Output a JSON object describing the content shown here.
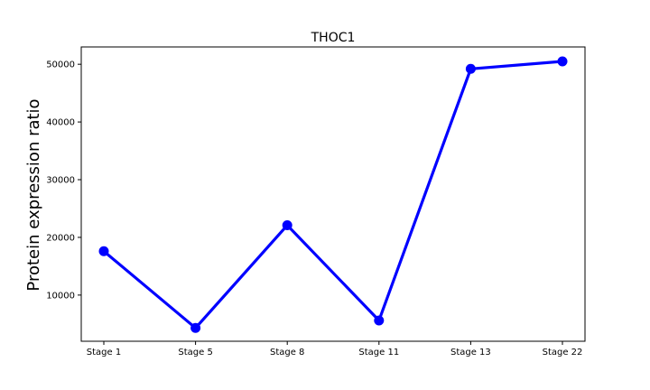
{
  "chart_data": {
    "type": "line",
    "title": "THOC1",
    "xlabel": "",
    "ylabel": "Protein expression ratio",
    "categories": [
      "Stage 1",
      "Stage 5",
      "Stage 8",
      "Stage 11",
      "Stage 13",
      "Stage 22"
    ],
    "series": [
      {
        "values": [
          17600,
          4300,
          22100,
          5600,
          49200,
          50500
        ],
        "color": "#0000ff"
      }
    ],
    "yticks": [
      10000,
      20000,
      30000,
      40000,
      50000
    ],
    "ylim": [
      2000,
      53000
    ],
    "grid": false,
    "legend": "none"
  }
}
